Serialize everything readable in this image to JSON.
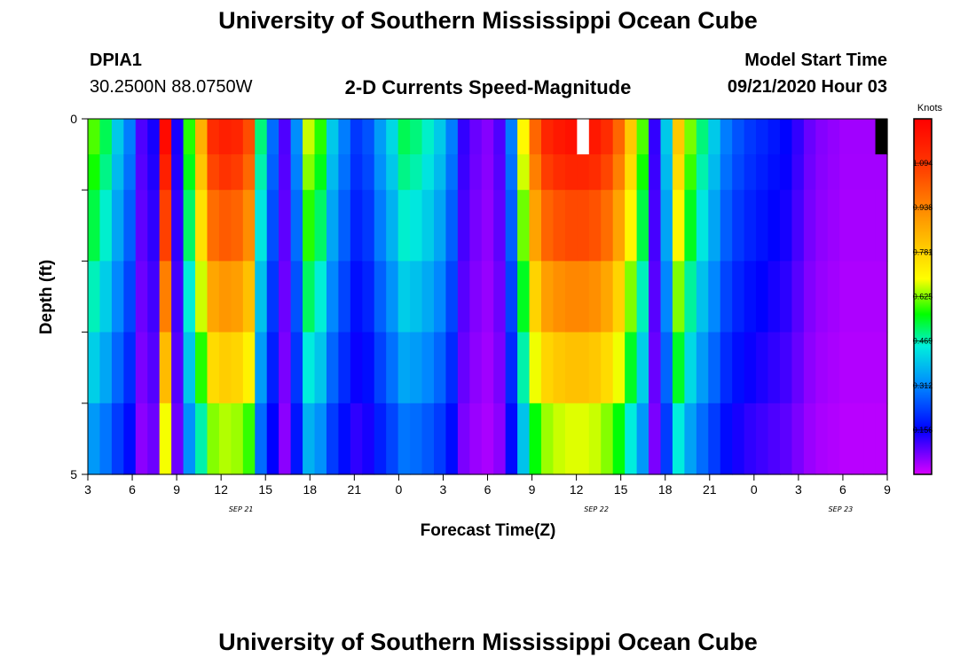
{
  "header": {
    "title_top": "University of Southern Mississippi Ocean Cube",
    "title_bottom": "University of Southern Mississippi Ocean Cube",
    "station_id": "DPIA1",
    "station_coords": "30.2500N 88.0750W",
    "model_label": "Model Start Time",
    "model_time": "09/21/2020 Hour 03"
  },
  "chart_data": {
    "type": "heatmap",
    "title": "2-D Currents Speed-Magnitude",
    "xlabel": "Forecast Time(Z)",
    "ylabel": "Depth (ft)",
    "y_range": [
      0,
      5
    ],
    "y_tick_labels": [
      "0",
      "5"
    ],
    "x_tick_labels": [
      "3",
      "6",
      "9",
      "12",
      "15",
      "18",
      "21",
      "0",
      "3",
      "6",
      "9",
      "12",
      "15",
      "18",
      "21",
      "0",
      "3",
      "6",
      "9"
    ],
    "day_labels": [
      {
        "text": "SEP 21",
        "at_tick": 3
      },
      {
        "text": "SEP 22",
        "at_tick": 11
      },
      {
        "text": "SEP 23",
        "at_tick": 16.5
      }
    ],
    "colorbar": {
      "label": "Knots",
      "min": 0,
      "max": 1.25,
      "ticks": [
        "0.156",
        "0.312",
        "0.469",
        "0.625",
        "0.781",
        "0.938",
        "1.094"
      ],
      "colors": [
        "#d800ff",
        "#0000ff",
        "#0088ff",
        "#00eedd",
        "#00ff00",
        "#ffff00",
        "#ff9900",
        "#ff0000"
      ]
    },
    "hours_per_column": 1,
    "depth_layers_ft": [
      0.25,
      0.75,
      1.5,
      2.5,
      3.5,
      4.5
    ],
    "layer_tops": [
      0,
      0.5,
      1,
      2,
      3,
      4
    ],
    "layer_bottoms": [
      0.5,
      1,
      2,
      3,
      4,
      5
    ],
    "profile_shape": [
      1.0,
      0.95,
      0.88,
      0.78,
      0.68,
      0.56
    ],
    "surface_speeds_knots": [
      0.6,
      0.52,
      0.4,
      0.3,
      0.1,
      0.14,
      1.22,
      0.14,
      0.58,
      0.85,
      1.12,
      1.16,
      1.14,
      1.05,
      0.5,
      0.28,
      0.1,
      0.32,
      0.66,
      0.58,
      0.4,
      0.3,
      0.22,
      0.25,
      0.34,
      0.42,
      0.52,
      0.5,
      0.46,
      0.4,
      0.3,
      0.12,
      0.08,
      0.06,
      0.1,
      0.3,
      0.7,
      1.0,
      1.14,
      1.18,
      1.2,
      1.2,
      1.18,
      1.12,
      1.0,
      0.8,
      0.6,
      0.12,
      0.4,
      0.8,
      0.62,
      0.5,
      0.4,
      0.3,
      0.25,
      0.22,
      0.2,
      0.18,
      0.16,
      0.12,
      0.08,
      0.06,
      0.05,
      0.04,
      0.04,
      0.04,
      0.04
    ],
    "missing_cells": [
      {
        "hour": 41,
        "layer": 0,
        "color": "#ffffff"
      },
      {
        "hour": 66,
        "layer": 0,
        "color": "#000000"
      }
    ]
  }
}
